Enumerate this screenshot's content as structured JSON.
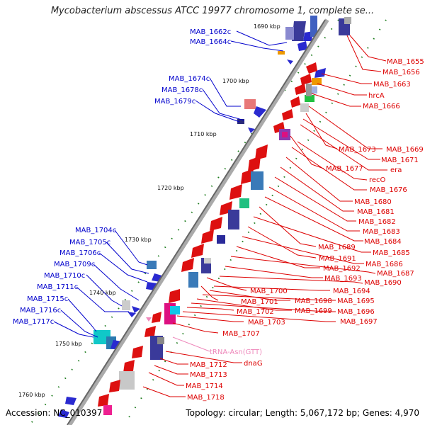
{
  "title": "Mycobacterium abscessus ATCC 19977 chromosome 1, complete se...",
  "accession": "Accession: NC_010397",
  "summary": "Topology: circular; Length: 5,067,172 bp; Genes: 4,970",
  "colors": {
    "forward_label": "#0000cc",
    "reverse_label": "#dd0000",
    "rna_label": "#ee88bb",
    "axis": "#888888",
    "dots": "#1a7a1a"
  },
  "ticks": [
    "1690 kbp",
    "1700 kbp",
    "1710 kbp",
    "1720 kbp",
    "1730 kbp",
    "1740 kbp",
    "1750 kbp",
    "1760 kbp"
  ],
  "left_labels": [
    "MAB_1662c",
    "MAB_1664c",
    "MAB_1674c",
    "MAB_1678c",
    "MAB_1679c",
    "MAB_1704c",
    "MAB_1705c",
    "MAB_1706c",
    "MAB_1709c",
    "MAB_1710c",
    "MAB_1711c",
    "MAB_1715c",
    "MAB_1716c",
    "MAB_1717c"
  ],
  "right_labels": [
    "MAB_1655",
    "MAB_1656",
    "MAB_1663",
    "hrcA",
    "MAB_1666",
    "MAB_1669",
    "MAB_1673",
    "MAB_1671",
    "era",
    "MAB_1677",
    "recO",
    "MAB_1676",
    "MAB_1680",
    "MAB_1681",
    "MAB_1682",
    "MAB_1683",
    "MAB_1684",
    "MAB_1689",
    "MAB_1685",
    "MAB_1691",
    "MAB_1686",
    "MAB_1692",
    "MAB_1687",
    "MAB_1693",
    "MAB_1690",
    "MAB_1694",
    "MAB_1700",
    "MAB_1698",
    "MAB_1695",
    "MAB_1701",
    "MAB_1699",
    "MAB_1696",
    "MAB_1702",
    "MAB_1697",
    "MAB_1703",
    "MAB_1707",
    "tRNA-Asn(GTT)",
    "dnaG",
    "MAB_1712",
    "MAB_1713",
    "MAB_1714",
    "MAB_1718"
  ]
}
